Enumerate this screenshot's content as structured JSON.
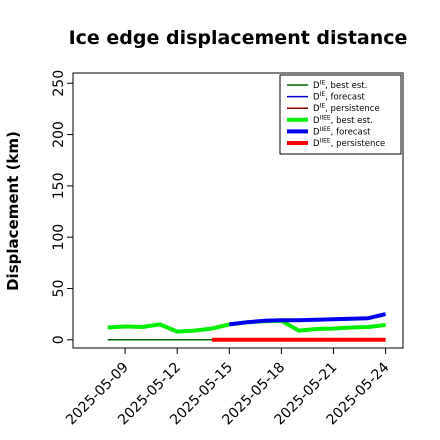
{
  "chart_data": {
    "type": "line",
    "title": "Ice edge displacement distance",
    "xlabel": "",
    "ylabel": "Displacement (km)",
    "ylim": [
      -8,
      260
    ],
    "yticks": [
      0,
      50,
      100,
      150,
      200,
      250
    ],
    "xlim": [
      "2025-05-06",
      "2025-05-25"
    ],
    "xticks": [
      "2025-05-09",
      "2025-05-12",
      "2025-05-15",
      "2025-05-18",
      "2025-05-21",
      "2025-05-24"
    ],
    "highlight_tick": "2025-05-15",
    "highlight_color": "#228B22",
    "grid": false,
    "legend_position": "top-right",
    "series": [
      {
        "name": "D",
        "sup": "IE",
        "suffix": ", best est.",
        "color": "#006400",
        "width": "thin",
        "x": [
          "2025-05-08",
          "2025-05-09",
          "2025-05-10",
          "2025-05-11",
          "2025-05-12",
          "2025-05-13",
          "2025-05-14"
        ],
        "values": [
          0,
          0,
          0,
          0,
          0,
          0,
          0
        ]
      },
      {
        "name": "D",
        "sup": "IE",
        "suffix": ", forecast",
        "color": "#0000cd",
        "width": "thin",
        "x": [],
        "values": []
      },
      {
        "name": "D",
        "sup": "IE",
        "suffix": ", persistence",
        "color": "#8b0000",
        "width": "thin",
        "x": [],
        "values": []
      },
      {
        "name": "D",
        "sup": "IIEE",
        "suffix": ", best est.",
        "color": "#00ee00",
        "width": "thick",
        "x": [
          "2025-05-08",
          "2025-05-09",
          "2025-05-10",
          "2025-05-11",
          "2025-05-12",
          "2025-05-13",
          "2025-05-14",
          "2025-05-15",
          "2025-05-16",
          "2025-05-17",
          "2025-05-18",
          "2025-05-19",
          "2025-05-20",
          "2025-05-21",
          "2025-05-22",
          "2025-05-23",
          "2025-05-24"
        ],
        "values": [
          12,
          13,
          12.5,
          15,
          8,
          9,
          11,
          15,
          17,
          18,
          18.5,
          9,
          10.5,
          11,
          12,
          12.5,
          14.5
        ]
      },
      {
        "name": "D",
        "sup": "IIEE",
        "suffix": ", forecast",
        "color": "#0000ee",
        "width": "thick",
        "x": [
          "2025-05-15",
          "2025-05-16",
          "2025-05-17",
          "2025-05-18",
          "2025-05-19",
          "2025-05-20",
          "2025-05-21",
          "2025-05-22",
          "2025-05-23",
          "2025-05-24"
        ],
        "values": [
          15,
          17,
          18.5,
          19,
          19,
          19.5,
          20,
          20.5,
          21,
          25
        ]
      },
      {
        "name": "D",
        "sup": "IIEE",
        "suffix": ", persistence",
        "color": "#ff0000",
        "width": "thick",
        "x": [
          "2025-05-14",
          "2025-05-15",
          "2025-05-16",
          "2025-05-17",
          "2025-05-18",
          "2025-05-19",
          "2025-05-20",
          "2025-05-21",
          "2025-05-22",
          "2025-05-23",
          "2025-05-24"
        ],
        "values": [
          0,
          0,
          0,
          0,
          0,
          0,
          0,
          0,
          0,
          0,
          0
        ]
      }
    ]
  }
}
